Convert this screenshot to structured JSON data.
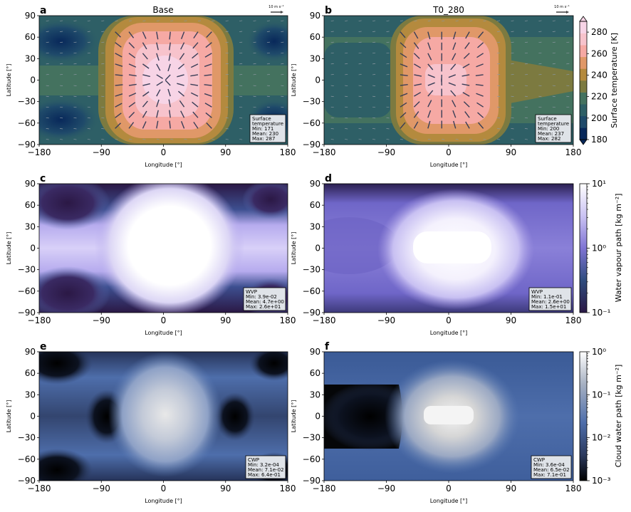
{
  "chart_data": [
    {
      "panel": "a",
      "title": "Base",
      "type": "heatmap",
      "x_ticks": [
        "−180",
        "−90",
        "0",
        "90",
        "180"
      ],
      "y_ticks": [
        "90",
        "60",
        "30",
        "0",
        "−30",
        "−60",
        "−90"
      ],
      "xlabel": "Longitude [°]",
      "ylabel": "Latitude [°]",
      "xlim": [
        -180,
        180
      ],
      "ylim": [
        -90,
        90
      ],
      "field": "Surface temperature [K]",
      "stats": [
        "Surface",
        "temperature",
        "Min: 171",
        "Mean: 230",
        "Max: 287"
      ],
      "wind_reference": "10 m s⁻¹"
    },
    {
      "panel": "b",
      "title": "T0_280",
      "type": "heatmap",
      "x_ticks": [
        "−180",
        "−90",
        "0",
        "90",
        "180"
      ],
      "y_ticks": [
        "90",
        "60",
        "30",
        "0",
        "−30",
        "−60",
        "−90"
      ],
      "xlabel": "Longitude [°]",
      "ylabel": "Latitude [°]",
      "xlim": [
        -180,
        180
      ],
      "ylim": [
        -90,
        90
      ],
      "field": "Surface temperature [K]",
      "stats": [
        "Surface",
        "temperature",
        "Min: 200",
        "Mean: 237",
        "Max: 282"
      ],
      "wind_reference": "10 m s⁻¹"
    },
    {
      "panel": "c",
      "title": "",
      "type": "heatmap",
      "x_ticks": [
        "−180",
        "−90",
        "0",
        "90",
        "180"
      ],
      "y_ticks": [
        "90",
        "60",
        "30",
        "0",
        "−30",
        "−60",
        "−90"
      ],
      "xlabel": "Longitude [°]",
      "ylabel": "Latitude [°]",
      "field": "Water vapour path [kg m⁻²]",
      "stats": [
        "WVP",
        "Min: 3.9e-02",
        "Mean: 4.7e+00",
        "Max: 2.6e+01"
      ]
    },
    {
      "panel": "d",
      "title": "",
      "type": "heatmap",
      "x_ticks": [
        "−180",
        "−90",
        "0",
        "90",
        "180"
      ],
      "y_ticks": [
        "90",
        "60",
        "30",
        "0",
        "−30",
        "−60",
        "−90"
      ],
      "xlabel": "Longitude [°]",
      "ylabel": "Latitude [°]",
      "field": "Water vapour path [kg m⁻²]",
      "stats": [
        "WVP",
        "Min: 1.1e-01",
        "Mean: 2.6e+00",
        "Max: 1.5e+01"
      ]
    },
    {
      "panel": "e",
      "title": "",
      "type": "heatmap",
      "x_ticks": [
        "−180",
        "−90",
        "0",
        "90",
        "180"
      ],
      "y_ticks": [
        "90",
        "60",
        "30",
        "0",
        "−30",
        "−60",
        "−90"
      ],
      "xlabel": "Longitude [°]",
      "ylabel": "Latitude [°]",
      "field": "Cloud water path [kg m⁻²]",
      "stats": [
        "CWP",
        "Min: 3.2e-04",
        "Mean: 7.1e-02",
        "Max: 6.4e-01"
      ]
    },
    {
      "panel": "f",
      "title": "",
      "type": "heatmap",
      "x_ticks": [
        "−180",
        "−90",
        "0",
        "90",
        "180"
      ],
      "y_ticks": [
        "90",
        "60",
        "30",
        "0",
        "−30",
        "−60",
        "−90"
      ],
      "xlabel": "Longitude [°]",
      "ylabel": "Latitude [°]",
      "field": "Cloud water path [kg m⁻²]",
      "stats": [
        "CWP",
        "Min: 3.6e-04",
        "Mean: 6.5e-02",
        "Max: 7.1e-01"
      ]
    }
  ],
  "colorbars": [
    {
      "label": "Surface temperature [K]",
      "ticks": [
        "180",
        "200",
        "220",
        "240",
        "260",
        "280"
      ],
      "scale": "linear",
      "range": [
        180,
        290
      ]
    },
    {
      "label": "Water vapour path [kg m⁻²]",
      "ticks": [
        "10⁻¹",
        "10⁰",
        "10¹"
      ],
      "scale": "log",
      "range": [
        0.1,
        10
      ]
    },
    {
      "label": "Cloud water path [kg m⁻²]",
      "ticks": [
        "10⁻³",
        "10⁻²",
        "10⁻¹",
        "10⁰"
      ],
      "scale": "log",
      "range": [
        0.001,
        1
      ]
    }
  ],
  "colors": {
    "temp": [
      "#08285a",
      "#1f4a6a",
      "#2e5f66",
      "#44725f",
      "#7c7a40",
      "#b48a3e",
      "#e09868",
      "#f6a9a4",
      "#f7c3cc",
      "#f7d4e6"
    ],
    "wvp_low": "#2b1845",
    "wvp_mid": "#7f74d4",
    "wvp_high": "#ffffff",
    "cwp_low": "#000000",
    "cwp_mid": "#4e6eab",
    "cwp_high": "#e8e8e8"
  }
}
